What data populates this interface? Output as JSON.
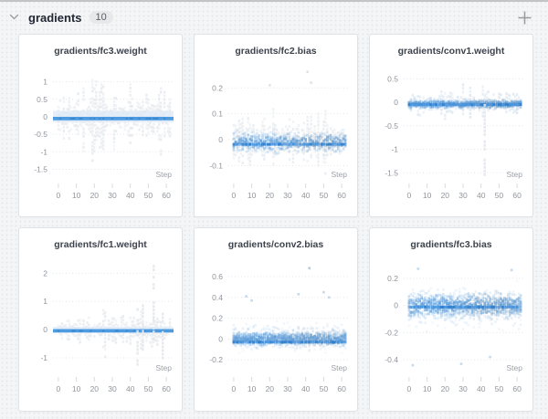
{
  "page": {
    "background": "#f4f5f6",
    "accent_blue": "#4f9be0",
    "dense_blue": "#2e7cc9"
  },
  "header": {
    "collapse_icon": "chevron-down-icon",
    "title": "gradients",
    "count": "10",
    "add_icon": "plus-icon"
  },
  "chart_data": [
    {
      "type": "heatmap",
      "title": "gradients/fc3.weight",
      "xlabel": "Step",
      "xticks": [
        0,
        10,
        20,
        30,
        40,
        50,
        60
      ],
      "xlim": [
        -3,
        64
      ],
      "steps": 63,
      "yticks": [
        1,
        0.5,
        0,
        -0.5,
        -1,
        -1.5
      ],
      "ylim": [
        -1.8,
        1.38
      ],
      "grid": "dotted",
      "seed": 11,
      "layers": [
        {
          "type": "columns",
          "color": "#e8ebef",
          "spread": 0.42,
          "max": 1.22
        },
        {
          "type": "wash",
          "color": "#dbe8f6",
          "y1": -0.16,
          "y2": 0.17,
          "opacity": 0.7
        },
        {
          "type": "band",
          "style": "solid",
          "y": -0.05,
          "color": "#4f9be0",
          "dark": "#2d7dcc"
        }
      ],
      "outliers": []
    },
    {
      "type": "heatmap",
      "title": "gradients/fc2.bias",
      "xlabel": "Step",
      "xticks": [
        0,
        10,
        20,
        30,
        40,
        50,
        60
      ],
      "xlim": [
        -3,
        64
      ],
      "steps": 63,
      "yticks": [
        0.2,
        0.1,
        0,
        -0.1
      ],
      "ylim": [
        -0.155,
        0.275
      ],
      "grid": "dotted",
      "seed": 22,
      "layers": [
        {
          "type": "columns",
          "color": "#eaedf0",
          "spread": 0.05,
          "max": 0.23
        },
        {
          "type": "cells",
          "color": "#5b9ad6",
          "spread": 0.05,
          "count": 10,
          "center": -0.01
        },
        {
          "type": "band",
          "style": "dashed",
          "y": -0.018,
          "color": "#4391dd",
          "dark": "#2e7cc9"
        }
      ],
      "outliers": [
        {
          "kind": "dot",
          "x": 41,
          "y": 0.262,
          "color": "#d9dee4"
        },
        {
          "kind": "dot",
          "x": 43,
          "y": 0.22,
          "color": "#d9dee4"
        },
        {
          "kind": "dot",
          "x": 20,
          "y": 0.21,
          "color": "#d9dee4"
        }
      ]
    },
    {
      "type": "heatmap",
      "title": "gradients/conv1.weight",
      "xlabel": "Step",
      "xticks": [
        0,
        10,
        20,
        30,
        40,
        50,
        60
      ],
      "xlim": [
        -3,
        64
      ],
      "steps": 63,
      "yticks": [
        0.5,
        0,
        -0.5,
        -1,
        -1.5
      ],
      "ylim": [
        -1.65,
        0.72
      ],
      "grid": "dotted",
      "seed": 33,
      "layers": [
        {
          "type": "columns",
          "color": "#dfe8f2",
          "spread": 0.14,
          "max": 0.5
        },
        {
          "type": "cells",
          "color": "#5b9ad6",
          "spread": 0.12,
          "count": 12,
          "center": -0.04
        },
        {
          "type": "band",
          "style": "dashed",
          "y": -0.05,
          "color": "#4391dd",
          "dark": "#2e7cc9"
        }
      ],
      "outliers": [
        {
          "kind": "column",
          "x": 42,
          "y1": -1.52,
          "y2": 0.2,
          "color": "#e2e7ed"
        }
      ]
    },
    {
      "type": "heatmap",
      "title": "gradients/fc1.weight",
      "xlabel": "Step",
      "xticks": [
        0,
        10,
        20,
        30,
        40,
        50,
        60
      ],
      "xlim": [
        -3,
        64
      ],
      "steps": 63,
      "yticks": [
        2,
        1,
        0,
        -1
      ],
      "ylim": [
        -1.55,
        2.4
      ],
      "grid": "dotted",
      "seed": 44,
      "layers": [
        {
          "type": "columns",
          "color": "#e8ebef",
          "spread": 0.3,
          "max": 0.9
        },
        {
          "type": "wash",
          "color": "#dbe8f6",
          "y1": -0.1,
          "y2": 0.1,
          "opacity": 0.7
        },
        {
          "type": "band",
          "style": "solid",
          "y": -0.04,
          "color": "#4f9be0",
          "dark": "#2d7dcc"
        }
      ],
      "outliers": [
        {
          "kind": "column",
          "x": 53,
          "y1": -0.4,
          "y2": 2.3,
          "color": "#e3e7ec"
        },
        {
          "kind": "column",
          "x": 44,
          "y1": -1.28,
          "y2": 1.02,
          "color": "#e3e7ec"
        },
        {
          "kind": "column",
          "x": 47,
          "y1": -0.7,
          "y2": 0.9,
          "color": "#e3e7ec"
        },
        {
          "kind": "column",
          "x": 58,
          "y1": -1.05,
          "y2": 0.6,
          "color": "#e3e7ec"
        }
      ]
    },
    {
      "type": "heatmap",
      "title": "gradients/conv2.bias",
      "xlabel": "Step",
      "xticks": [
        0,
        10,
        20,
        30,
        40,
        50,
        60
      ],
      "xlim": [
        -3,
        64
      ],
      "steps": 63,
      "yticks": [
        0.6,
        0.4,
        0.2,
        0,
        -0.2
      ],
      "ylim": [
        -0.33,
        0.74
      ],
      "grid": "dotted",
      "seed": 55,
      "layers": [
        {
          "type": "cells",
          "color": "#5b9ad6",
          "spread": 0.085,
          "count": 15,
          "center": 0
        },
        {
          "type": "cells",
          "color": "#8fb8e0",
          "spread": 0.17,
          "count": 5,
          "center": 0.02,
          "alpha": 0.7
        },
        {
          "type": "band",
          "style": "dashed",
          "y": -0.03,
          "color": "#4391dd",
          "dark": "#2e7cc9"
        }
      ],
      "outliers": [
        {
          "kind": "dot",
          "x": 42,
          "y": 0.68,
          "color": "#9ec5e8"
        },
        {
          "kind": "dot",
          "x": 7,
          "y": 0.41,
          "color": "#b9d3ec"
        },
        {
          "kind": "dot",
          "x": 36,
          "y": 0.43,
          "color": "#b9d3ec"
        },
        {
          "kind": "dot",
          "x": 50,
          "y": 0.45,
          "color": "#b9d3ec"
        },
        {
          "kind": "dot",
          "x": 53,
          "y": 0.4,
          "color": "#b9d3ec"
        },
        {
          "kind": "dot",
          "x": 10,
          "y": 0.37,
          "color": "#b9d3ec"
        }
      ]
    },
    {
      "type": "heatmap",
      "title": "gradients/fc3.bias",
      "xlabel": "Step",
      "xticks": [
        0,
        10,
        20,
        30,
        40,
        50,
        60
      ],
      "xlim": [
        -3,
        64
      ],
      "steps": 63,
      "yticks": [
        0.2,
        0,
        -0.2,
        -0.4
      ],
      "ylim": [
        -0.5,
        0.32
      ],
      "grid": "dotted",
      "seed": 66,
      "layers": [
        {
          "type": "cells",
          "color": "#5b9ad6",
          "spread": 0.12,
          "count": 15,
          "center": 0
        },
        {
          "type": "cells",
          "color": "#8fb8e0",
          "spread": 0.2,
          "count": 4,
          "center": -0.02,
          "alpha": 0.7
        },
        {
          "type": "band",
          "style": "dashed",
          "y": -0.012,
          "color": "#4391dd",
          "dark": "#2e7cc9"
        }
      ],
      "outliers": [
        {
          "kind": "dot",
          "x": 2,
          "y": -0.44,
          "color": "#b9d3ec"
        },
        {
          "kind": "dot",
          "x": 29,
          "y": -0.43,
          "color": "#b9d3ec"
        },
        {
          "kind": "dot",
          "x": 45,
          "y": -0.38,
          "color": "#b9d3ec"
        },
        {
          "kind": "dot",
          "x": 5,
          "y": 0.27,
          "color": "#b9d3ec"
        },
        {
          "kind": "dot",
          "x": 57,
          "y": 0.26,
          "color": "#b9d3ec"
        }
      ]
    }
  ]
}
